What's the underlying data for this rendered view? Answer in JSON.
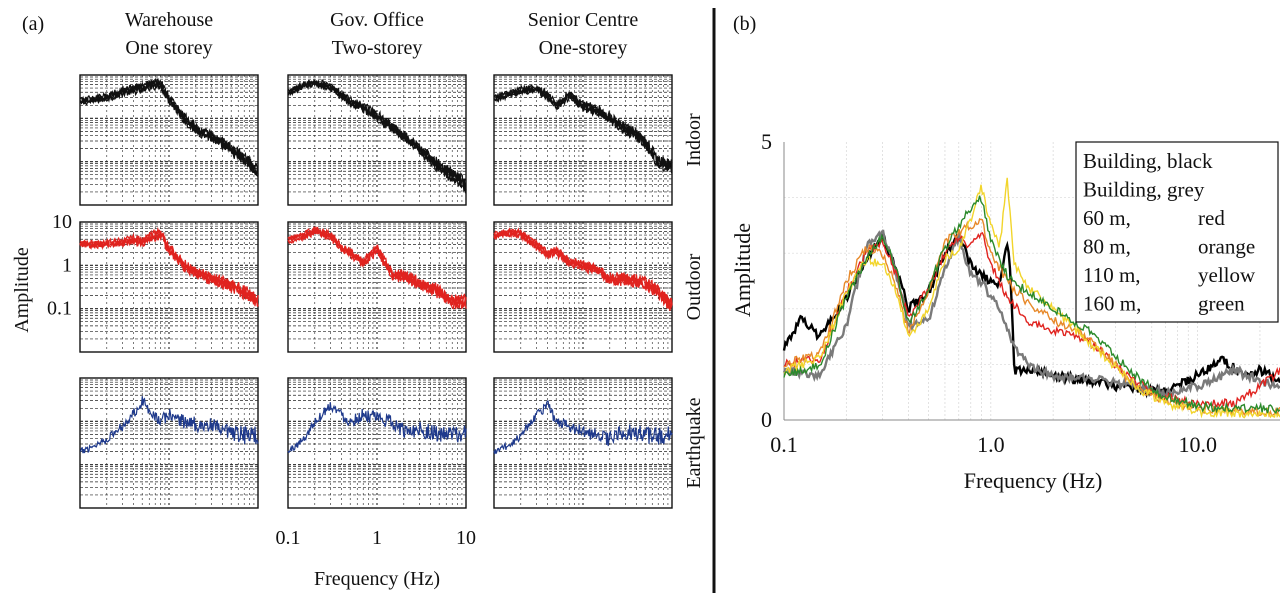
{
  "figure": {
    "panel_a_label": "(a)",
    "panel_b_label": "(b)"
  },
  "chart_data": [
    {
      "type": "line",
      "panel": "(a)",
      "columns": [
        {
          "line1": "Warehouse",
          "line2": "One storey"
        },
        {
          "line1": "Gov. Office",
          "line2": "Two-storey"
        },
        {
          "line1": "Senior Centre",
          "line2": "One-storey"
        }
      ],
      "rows": [
        {
          "label": "Indoor",
          "color": "#111111"
        },
        {
          "label": "Outdoor",
          "color": "#e0231f"
        },
        {
          "label": "Earthquake",
          "color": "#1f3a8c"
        }
      ],
      "ylabel": "Amplitude",
      "xlabel": "Frequency (Hz)",
      "yscale": "log",
      "xscale": "log",
      "ylim": [
        0.01,
        10
      ],
      "xlim": [
        0.1,
        10
      ],
      "ytick_labels": [
        "10",
        "1",
        "0.1"
      ],
      "xtick_labels": [
        "0.1",
        "1",
        "10"
      ],
      "grid": true,
      "series_profiles": {
        "Warehouse": {
          "Indoor": {
            "x": [
              0.1,
              0.2,
              0.3,
              0.4,
              0.5,
              0.6,
              0.8,
              1.0,
              1.5,
              2,
              3,
              5,
              7,
              10
            ],
            "y": [
              2.5,
              3.2,
              4.2,
              4.8,
              5.0,
              6.0,
              6.5,
              3.0,
              1.0,
              0.6,
              0.4,
              0.2,
              0.12,
              0.06
            ]
          },
          "Outdoor": {
            "x": [
              0.1,
              0.2,
              0.3,
              0.4,
              0.5,
              0.6,
              0.8,
              1.0,
              1.5,
              2,
              3,
              5,
              7,
              10
            ],
            "y": [
              3.2,
              3.2,
              3.5,
              4.0,
              3.6,
              4.5,
              5.5,
              2.5,
              1.0,
              0.7,
              0.5,
              0.35,
              0.25,
              0.15
            ]
          },
          "Earthquake": {
            "x": [
              0.1,
              0.2,
              0.3,
              0.4,
              0.5,
              0.6,
              0.8,
              1.0,
              1.5,
              2,
              3,
              5,
              7,
              10
            ],
            "y": [
              0.2,
              0.4,
              0.8,
              1.6,
              3.0,
              2.0,
              1.0,
              1.5,
              1.0,
              0.9,
              0.8,
              0.5,
              0.5,
              0.5
            ]
          }
        },
        "Gov. Office": {
          "Indoor": {
            "x": [
              0.1,
              0.15,
              0.2,
              0.3,
              0.4,
              0.5,
              0.7,
              1.0,
              1.5,
              2,
              3,
              5,
              7,
              10
            ],
            "y": [
              4.0,
              6.0,
              7.0,
              5.5,
              3.5,
              2.5,
              1.8,
              1.2,
              0.6,
              0.4,
              0.2,
              0.08,
              0.05,
              0.03
            ]
          },
          "Outdoor": {
            "x": [
              0.1,
              0.15,
              0.2,
              0.3,
              0.4,
              0.5,
              0.7,
              1.0,
              1.5,
              2,
              3,
              5,
              7,
              10
            ],
            "y": [
              4.0,
              5.0,
              6.5,
              5.0,
              2.5,
              2.0,
              1.2,
              2.5,
              0.6,
              0.6,
              0.4,
              0.25,
              0.15,
              0.15
            ]
          },
          "Earthquake": {
            "x": [
              0.1,
              0.15,
              0.2,
              0.3,
              0.4,
              0.5,
              0.7,
              1.0,
              1.5,
              2,
              3,
              5,
              7,
              10
            ],
            "y": [
              0.2,
              0.4,
              1.0,
              2.5,
              1.5,
              1.0,
              1.5,
              1.2,
              1.0,
              0.6,
              0.7,
              0.5,
              0.5,
              0.5
            ]
          }
        },
        "Senior Centre": {
          "Indoor": {
            "x": [
              0.1,
              0.2,
              0.3,
              0.4,
              0.5,
              0.7,
              1.0,
              1.5,
              2,
              3,
              5,
              7,
              10
            ],
            "y": [
              3.0,
              4.5,
              5.0,
              3.5,
              2.0,
              3.5,
              2.0,
              1.5,
              1.0,
              0.6,
              0.3,
              0.1,
              0.08
            ]
          },
          "Outdoor": {
            "x": [
              0.1,
              0.15,
              0.2,
              0.3,
              0.4,
              0.5,
              0.7,
              1.0,
              1.5,
              2,
              3,
              5,
              7,
              10
            ],
            "y": [
              5.0,
              6.0,
              5.5,
              3.0,
              1.8,
              2.2,
              1.2,
              1.0,
              0.8,
              0.5,
              0.5,
              0.4,
              0.25,
              0.12
            ]
          },
          "Earthquake": {
            "x": [
              0.1,
              0.15,
              0.2,
              0.3,
              0.4,
              0.5,
              0.7,
              1.0,
              1.5,
              2,
              3,
              5,
              7,
              10
            ],
            "y": [
              0.2,
              0.3,
              0.5,
              1.5,
              2.5,
              1.0,
              0.8,
              0.6,
              0.5,
              0.4,
              0.6,
              0.5,
              0.5,
              0.5
            ]
          }
        }
      }
    },
    {
      "type": "line",
      "panel": "(b)",
      "xlabel": "Frequency (Hz)",
      "ylabel": "Amplitude",
      "xscale": "log",
      "xlim": [
        0.1,
        25
      ],
      "ylim": [
        0,
        5
      ],
      "ytick_labels": [
        "5",
        "0"
      ],
      "xtick_labels": [
        "0.1",
        "1.0",
        "10.0"
      ],
      "grid": true,
      "legend_position": "top-right",
      "series": [
        {
          "name": "Building, black",
          "legend_name": "Building, black",
          "legend_color": "",
          "color": "#000000",
          "x": [
            0.1,
            0.12,
            0.15,
            0.2,
            0.25,
            0.3,
            0.35,
            0.4,
            0.5,
            0.6,
            0.7,
            0.8,
            0.9,
            1.0,
            1.1,
            1.2,
            1.25,
            1.3,
            1.5,
            2,
            3,
            5,
            7,
            10,
            13,
            17,
            20,
            25
          ],
          "y": [
            1.3,
            1.8,
            1.5,
            2.2,
            2.9,
            3.3,
            2.7,
            2.0,
            2.3,
            3.0,
            3.3,
            2.8,
            2.6,
            2.5,
            2.4,
            3.2,
            2.5,
            0.9,
            0.9,
            0.8,
            0.7,
            0.55,
            0.5,
            0.8,
            1.1,
            0.8,
            0.9,
            0.7
          ]
        },
        {
          "name": "Building, grey",
          "legend_name": "Building, grey",
          "legend_color": "",
          "color": "#7a7a7a",
          "x": [
            0.1,
            0.15,
            0.2,
            0.25,
            0.3,
            0.35,
            0.4,
            0.5,
            0.6,
            0.7,
            0.8,
            0.9,
            1.0,
            1.1,
            1.3,
            1.5,
            2,
            3,
            5,
            7,
            10,
            15,
            20,
            25
          ],
          "y": [
            0.9,
            0.8,
            1.7,
            3.1,
            3.4,
            2.6,
            1.7,
            1.8,
            2.7,
            3.3,
            2.6,
            2.5,
            2.2,
            2.0,
            1.3,
            1.0,
            0.8,
            0.75,
            0.6,
            0.5,
            0.6,
            0.9,
            0.7,
            0.6
          ]
        },
        {
          "name": "60 m",
          "legend_name": "60 m,",
          "legend_color": "red",
          "color": "#e0231f",
          "x": [
            0.1,
            0.15,
            0.2,
            0.25,
            0.3,
            0.35,
            0.4,
            0.5,
            0.6,
            0.7,
            0.8,
            0.9,
            1.0,
            1.2,
            1.5,
            2,
            3,
            5,
            7,
            10,
            15,
            20,
            25
          ],
          "y": [
            1.0,
            1.1,
            2.3,
            3.0,
            3.2,
            2.6,
            1.8,
            2.4,
            3.0,
            3.3,
            3.1,
            3.4,
            2.8,
            2.2,
            1.8,
            1.6,
            1.4,
            0.7,
            0.4,
            0.3,
            0.3,
            0.6,
            0.9
          ]
        },
        {
          "name": "80 m",
          "legend_name": "80 m,",
          "legend_color": "orange",
          "color": "#e7892a",
          "x": [
            0.1,
            0.15,
            0.2,
            0.25,
            0.3,
            0.35,
            0.4,
            0.5,
            0.6,
            0.7,
            0.8,
            0.9,
            1.0,
            1.2,
            1.5,
            2,
            3,
            5,
            7,
            10,
            15,
            20,
            25
          ],
          "y": [
            1.0,
            1.2,
            2.5,
            3.1,
            3.0,
            2.4,
            1.6,
            2.3,
            3.2,
            3.4,
            3.5,
            3.6,
            3.0,
            2.5,
            2.1,
            1.8,
            1.5,
            0.6,
            0.35,
            0.2,
            0.15,
            0.15,
            0.15
          ]
        },
        {
          "name": "110 m",
          "legend_name": "110 m,",
          "legend_color": "yellow",
          "color": "#f2d52b",
          "x": [
            0.1,
            0.15,
            0.2,
            0.25,
            0.3,
            0.35,
            0.4,
            0.5,
            0.6,
            0.7,
            0.8,
            0.9,
            1.0,
            1.1,
            1.2,
            1.3,
            1.5,
            2,
            3,
            5,
            7,
            10,
            15,
            20,
            25
          ],
          "y": [
            0.9,
            1.1,
            2.3,
            2.9,
            2.8,
            2.3,
            1.5,
            2.0,
            2.9,
            3.1,
            3.6,
            4.2,
            3.5,
            3.1,
            4.3,
            2.8,
            2.4,
            2.0,
            1.4,
            0.6,
            0.3,
            0.15,
            0.12,
            0.1,
            0.1
          ]
        },
        {
          "name": "160 m",
          "legend_name": "160 m,",
          "legend_color": "green",
          "color": "#2b8a2b",
          "x": [
            0.1,
            0.15,
            0.2,
            0.25,
            0.3,
            0.35,
            0.4,
            0.5,
            0.6,
            0.7,
            0.8,
            0.9,
            1.0,
            1.2,
            1.5,
            2,
            3,
            5,
            7,
            10,
            15,
            20,
            25
          ],
          "y": [
            0.8,
            1.0,
            2.2,
            2.9,
            3.3,
            2.7,
            1.7,
            2.4,
            3.1,
            3.5,
            3.8,
            4.0,
            3.2,
            2.6,
            2.3,
            2.0,
            1.6,
            0.8,
            0.4,
            0.25,
            0.2,
            0.2,
            0.2
          ]
        }
      ]
    }
  ]
}
